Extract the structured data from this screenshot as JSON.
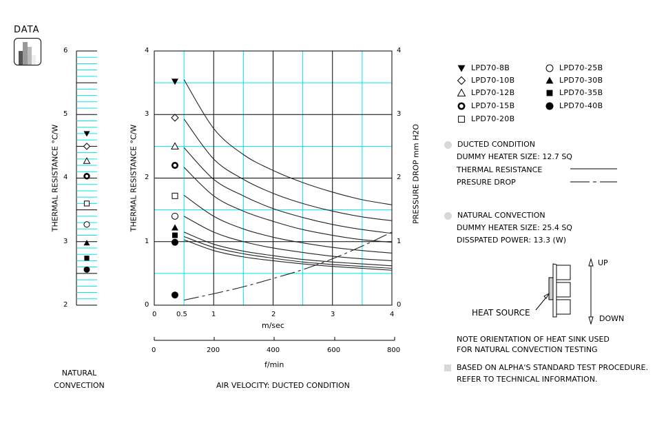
{
  "header": {
    "data_label": "DATA",
    "data_icon": "bar-chart-icon"
  },
  "left_scale": {
    "ylabel": "THERMAL  RESISTANCE   °C/W",
    "ticks": [
      "6",
      "5",
      "4",
      "3",
      "2"
    ],
    "footer_line1": "NATURAL",
    "footer_line2": "CONVECTION"
  },
  "main_chart": {
    "ylabel_left": "THERMAL  RESISTANCE   °C/W",
    "ylabel_right": "PRESSURE  DROP    mm H2O",
    "y_ticks_left": [
      "4",
      "3",
      "2",
      "1",
      "0"
    ],
    "y_ticks_right": [
      "4",
      "3",
      "2",
      "1",
      "0"
    ],
    "x_ticks_ms": [
      "0",
      "0.5",
      "1",
      "2",
      "3",
      "4"
    ],
    "x_label_ms": "m/sec",
    "x_ticks_fmin": [
      "0",
      "200",
      "400",
      "600",
      "800"
    ],
    "x_label_fmin": "f/min",
    "caption": "AIR VELOCITY:  DUCTED CONDITION"
  },
  "legend": {
    "items": [
      {
        "marker": "filled-down-triangle",
        "label": "LPD70-8B"
      },
      {
        "marker": "open-diamond",
        "label": "LPD70-10B"
      },
      {
        "marker": "open-triangle",
        "label": "LPD70-12B"
      },
      {
        "marker": "thick-ring",
        "label": "LPD70-15B"
      },
      {
        "marker": "open-square",
        "label": "LPD70-20B"
      },
      {
        "marker": "open-circle",
        "label": "LPD70-25B"
      },
      {
        "marker": "filled-triangle",
        "label": "LPD70-30B"
      },
      {
        "marker": "filled-square",
        "label": "LPD70-35B"
      },
      {
        "marker": "filled-circle",
        "label": "LPD70-40B"
      }
    ]
  },
  "notes": {
    "ducted_title": "DUCTED CONDITION",
    "ducted_heater": "DUMMY HEATER SIZE: 12.7 SQ",
    "thermal_resistance": "THERMAL RESISTANCE",
    "pressure_drop": "PRESURE DROP",
    "natural_title": "NATURAL CONVECTION",
    "natural_heater": "DUMMY HEATER SIZE:  25.4 SQ",
    "dissipated": "DISSPATED POWER:   13.3 (W)",
    "heat_source": "HEAT SOURCE",
    "up": "UP",
    "down": "DOWN",
    "orientation_1": "NOTE ORIENTATION OF HEAT SINK USED",
    "orientation_2": "FOR NATURAL CONVECTION TESTING",
    "standard_1": "BASED ON ALPHA'S STANDARD TEST PROCEDURE.",
    "standard_2": "REFER TO TECHNICAL INFORMATION."
  },
  "colors": {
    "grid_major": "#000000",
    "grid_minor": "#00e5ee",
    "bullet": "#d8d8d8"
  },
  "chart_data": [
    {
      "type": "line",
      "title": "Ducted condition: thermal resistance & pressure drop vs air velocity",
      "xlabel": "Air velocity (m/sec)",
      "ylabel": "Thermal resistance (°C/W)",
      "ylabel_right": "Pressure drop (mm H2O)",
      "xlim": [
        0,
        4
      ],
      "ylim": [
        0,
        4
      ],
      "grid": true,
      "x": [
        0.5,
        1.0,
        1.5,
        2.0,
        2.5,
        3.0,
        3.5,
        4.0
      ],
      "series": [
        {
          "name": "LPD70-8B",
          "values": [
            3.55,
            2.78,
            2.37,
            2.12,
            1.93,
            1.78,
            1.66,
            1.58
          ]
        },
        {
          "name": "LPD70-10B",
          "values": [
            2.93,
            2.3,
            1.98,
            1.76,
            1.6,
            1.48,
            1.39,
            1.33
          ]
        },
        {
          "name": "LPD70-12B",
          "values": [
            2.48,
            1.98,
            1.72,
            1.52,
            1.38,
            1.27,
            1.19,
            1.13
          ]
        },
        {
          "name": "LPD70-15B",
          "values": [
            2.17,
            1.72,
            1.48,
            1.32,
            1.19,
            1.1,
            1.03,
            0.99
          ]
        },
        {
          "name": "LPD70-20B",
          "values": [
            1.73,
            1.4,
            1.2,
            1.07,
            0.98,
            0.91,
            0.86,
            0.82
          ]
        },
        {
          "name": "LPD70-25B",
          "values": [
            1.4,
            1.15,
            1.0,
            0.9,
            0.83,
            0.77,
            0.73,
            0.7
          ]
        },
        {
          "name": "LPD70-30B",
          "values": [
            1.15,
            0.96,
            0.85,
            0.78,
            0.72,
            0.68,
            0.65,
            0.62
          ]
        },
        {
          "name": "LPD70-35B",
          "values": [
            1.08,
            0.91,
            0.81,
            0.74,
            0.68,
            0.64,
            0.61,
            0.58
          ]
        },
        {
          "name": "LPD70-40B",
          "values": [
            1.03,
            0.86,
            0.76,
            0.7,
            0.65,
            0.61,
            0.58,
            0.55
          ]
        },
        {
          "name": "Pressure drop",
          "axis": "right",
          "style": "dash-dot",
          "values": [
            0.08,
            0.18,
            0.29,
            0.42,
            0.56,
            0.73,
            0.93,
            1.15
          ]
        }
      ],
      "markers_at_x0_35": [
        {
          "name": "LPD70-8B",
          "y": 3.52
        },
        {
          "name": "LPD70-10B",
          "y": 2.95
        },
        {
          "name": "LPD70-12B",
          "y": 2.5
        },
        {
          "name": "LPD70-15B",
          "y": 2.2
        },
        {
          "name": "LPD70-20B",
          "y": 1.72
        },
        {
          "name": "LPD70-25B",
          "y": 1.4
        },
        {
          "name": "LPD70-30B",
          "y": 1.22
        },
        {
          "name": "LPD70-35B",
          "y": 1.1
        },
        {
          "name": "LPD70-40B",
          "y": 0.99
        },
        {
          "name": "Pressure drop marker",
          "y": 0.16
        }
      ],
      "secondary_x_axis": {
        "label": "f/min",
        "ticks": [
          0,
          200,
          400,
          600,
          800
        ]
      }
    },
    {
      "type": "scatter",
      "title": "Natural convection thermal resistance",
      "ylabel": "Thermal resistance (°C/W)",
      "ylim": [
        2,
        6
      ],
      "points": [
        {
          "name": "LPD70-8B",
          "y": 4.7
        },
        {
          "name": "LPD70-10B",
          "y": 4.5
        },
        {
          "name": "LPD70-12B",
          "y": 4.27
        },
        {
          "name": "LPD70-15B",
          "y": 4.03
        },
        {
          "name": "LPD70-20B",
          "y": 3.6
        },
        {
          "name": "LPD70-25B",
          "y": 3.27
        },
        {
          "name": "LPD70-30B",
          "y": 2.98
        },
        {
          "name": "LPD70-35B",
          "y": 2.74
        },
        {
          "name": "LPD70-40B",
          "y": 2.56
        }
      ]
    }
  ]
}
